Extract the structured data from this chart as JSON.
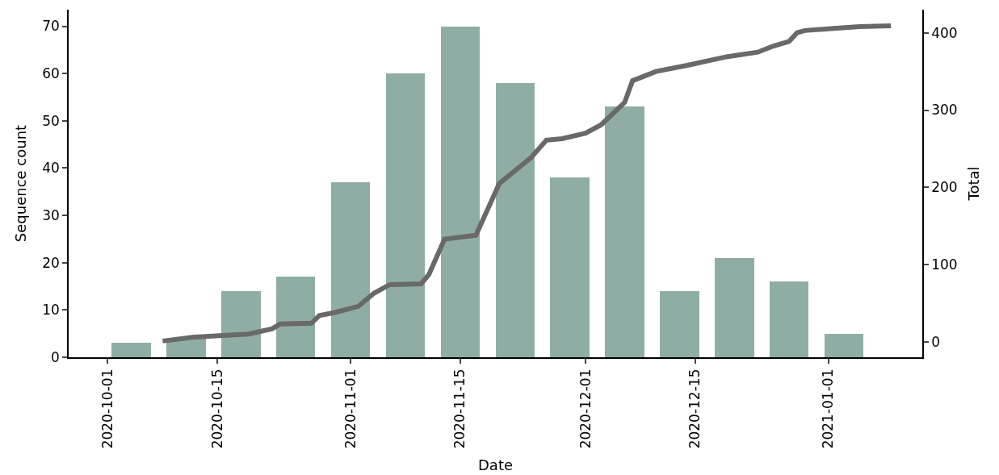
{
  "chart_data": {
    "type": "bar",
    "xlabel": "Date",
    "ylabel": "Sequence count",
    "y2label": "Total",
    "xlim": [
      "2020-09-26",
      "2021-01-13"
    ],
    "xticks": [
      {
        "value": "2020-10-01",
        "label": "2020-10-01"
      },
      {
        "value": "2020-10-15",
        "label": "2020-10-15"
      },
      {
        "value": "2020-11-01",
        "label": "2020-11-01"
      },
      {
        "value": "2020-11-15",
        "label": "2020-11-15"
      },
      {
        "value": "2020-12-01",
        "label": "2020-12-01"
      },
      {
        "value": "2020-12-15",
        "label": "2020-12-15"
      },
      {
        "value": "2021-01-01",
        "label": "2021-01-01"
      }
    ],
    "ylim": [
      0,
      73.5
    ],
    "yticks": [
      0,
      10,
      20,
      30,
      40,
      50,
      60,
      70
    ],
    "y2lim": [
      -20,
      430
    ],
    "y2ticks": [
      0,
      100,
      200,
      300,
      400
    ],
    "series": [
      {
        "color": "#8fada4",
        "x": [
          "2020-10-04",
          "2020-10-11",
          "2020-10-18",
          "2020-10-25",
          "2020-11-01",
          "2020-11-08",
          "2020-11-15",
          "2020-11-22",
          "2020-11-29",
          "2020-12-06",
          "2020-12-13",
          "2020-12-20",
          "2020-12-27",
          "2021-01-03"
        ],
        "values": [
          3,
          4,
          14,
          17,
          37,
          60,
          70,
          58,
          38,
          53,
          14,
          21,
          16,
          5
        ]
      },
      {
        "type": "line",
        "axis": "y2",
        "color": "#696969",
        "line_style": "solid",
        "x": [
          "2020-10-08",
          "2020-10-12",
          "2020-10-19",
          "2020-10-22",
          "2020-10-23",
          "2020-10-27",
          "2020-10-28",
          "2020-10-30",
          "2020-11-02",
          "2020-11-04",
          "2020-11-06",
          "2020-11-10",
          "2020-11-11",
          "2020-11-13",
          "2020-11-17",
          "2020-11-20",
          "2020-11-24",
          "2020-11-26",
          "2020-11-28",
          "2020-12-01",
          "2020-12-03",
          "2020-12-06",
          "2020-12-07",
          "2020-12-10",
          "2020-12-14",
          "2020-12-19",
          "2020-12-23",
          "2020-12-25",
          "2020-12-27",
          "2020-12-28",
          "2020-12-29",
          "2021-01-02",
          "2021-01-05",
          "2021-01-09"
        ],
        "values": [
          1,
          6,
          10,
          17,
          23,
          24,
          34,
          38,
          46,
          63,
          74,
          75,
          87,
          133,
          138,
          205,
          238,
          261,
          263,
          270,
          281,
          310,
          338,
          350,
          358,
          369,
          375,
          383,
          389,
          400,
          403,
          406,
          408,
          409
        ]
      }
    ]
  }
}
